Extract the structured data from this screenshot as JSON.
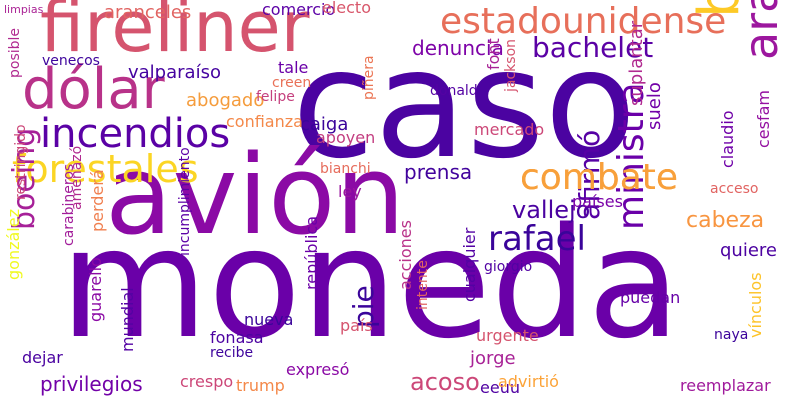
{
  "words": [
    {
      "text": "caso",
      "color": "#4b03a1"
    },
    {
      "text": "moneda",
      "color": "#6a00a8"
    },
    {
      "text": "avión",
      "color": "#8b0aa5"
    },
    {
      "text": "fireliner",
      "color": "#d5546e"
    },
    {
      "text": "dólar",
      "color": "#b83289"
    },
    {
      "text": "brics",
      "color": "#fdc926"
    },
    {
      "text": "estadounidense",
      "color": "#e76f5a"
    },
    {
      "text": "araneda",
      "color": "#9c179e"
    },
    {
      "text": "incendios",
      "color": "#5a01a5"
    },
    {
      "text": "forestales",
      "color": "#fbd524"
    },
    {
      "text": "combate",
      "color": "#f8a03b"
    },
    {
      "text": "rafael",
      "color": "#3a049a"
    },
    {
      "text": "ministra",
      "color": "#6a00a8"
    },
    {
      "text": "bachelet",
      "color": "#5b01a5"
    },
    {
      "text": "boeing",
      "color": "#a62098"
    },
    {
      "text": "vallejo",
      "color": "#4a02a0"
    },
    {
      "text": "cabeza",
      "color": "#f89540"
    },
    {
      "text": "denuncia",
      "color": "#7e03a8"
    },
    {
      "text": "afirmó",
      "color": "#5601a4"
    },
    {
      "text": "valparaíso",
      "color": "#4503a0"
    },
    {
      "text": "abogado",
      "color": "#f59c3c"
    },
    {
      "text": "acoso",
      "color": "#cc4778"
    },
    {
      "text": "privilegios",
      "color": "#7201a8"
    },
    {
      "text": "pie",
      "color": "#3b049a"
    },
    {
      "text": "prensa",
      "color": "#42039d"
    },
    {
      "text": "combate",
      "color": "#f8a03b"
    },
    {
      "text": "aranceles",
      "color": "#e16462"
    },
    {
      "text": "comercio",
      "color": "#5c01a6"
    },
    {
      "text": "electo",
      "color": "#d8576b"
    },
    {
      "text": "suelo",
      "color": "#7201a8"
    },
    {
      "text": "cesfam",
      "color": "#9511a1"
    },
    {
      "text": "claudio",
      "color": "#6f00a8"
    },
    {
      "text": "font",
      "color": "#a82296"
    },
    {
      "text": "jackson",
      "color": "#d5546e"
    },
    {
      "text": "suplantar",
      "color": "#b12a90"
    },
    {
      "text": "piñera",
      "color": "#eb7655"
    },
    {
      "text": "caiga",
      "color": "#3a049a"
    },
    {
      "text": "donald",
      "color": "#5402a3"
    },
    {
      "text": "mercado",
      "color": "#cc4778"
    },
    {
      "text": "confianza",
      "color": "#f48849"
    },
    {
      "text": "apoyen",
      "color": "#c33d80"
    },
    {
      "text": "creen",
      "color": "#e97158"
    },
    {
      "text": "felipe",
      "color": "#c5407e"
    },
    {
      "text": "tale",
      "color": "#6a00a8"
    },
    {
      "text": "ley",
      "color": "#9a169f"
    },
    {
      "text": "bianchi",
      "color": "#e66c5c"
    },
    {
      "text": "quiere",
      "color": "#4c02a1"
    },
    {
      "text": "países",
      "color": "#7a02a8"
    },
    {
      "text": "acceso",
      "color": "#e16462"
    },
    {
      "text": "vínculos",
      "color": "#fdc328"
    },
    {
      "text": "reemplazar",
      "color": "#a01a9c"
    },
    {
      "text": "eeuu",
      "color": "#5002a2"
    },
    {
      "text": "naya",
      "color": "#3c049b"
    },
    {
      "text": "jorge",
      "color": "#a82296"
    },
    {
      "text": "advirtió",
      "color": "#fca338"
    },
    {
      "text": "urgente",
      "color": "#d5546e"
    },
    {
      "text": "cualquier",
      "color": "#5302a3"
    },
    {
      "text": "giorgio",
      "color": "#5102a3"
    },
    {
      "text": "intente",
      "color": "#e16462"
    },
    {
      "text": "acciones",
      "color": "#b93289"
    },
    {
      "text": "puedan",
      "color": "#6600a7"
    },
    {
      "text": "expresó",
      "color": "#8a09a5"
    },
    {
      "text": "trump",
      "color": "#f48849"
    },
    {
      "text": "crespo",
      "color": "#cc4778"
    },
    {
      "text": "mundial",
      "color": "#5402a3"
    },
    {
      "text": "fonasa",
      "color": "#4c02a1"
    },
    {
      "text": "recibe",
      "color": "#3e049c"
    },
    {
      "text": "nueva",
      "color": "#3b049a"
    },
    {
      "text": "república",
      "color": "#6a00a8"
    },
    {
      "text": "país",
      "color": "#d5546e"
    },
    {
      "text": "incumplimiento",
      "color": "#5c01a6"
    },
    {
      "text": "dejar",
      "color": "#4a02a0"
    },
    {
      "text": "guarello",
      "color": "#8b0aa5"
    },
    {
      "text": "perderá",
      "color": "#f07f4f"
    },
    {
      "text": "amenazó",
      "color": "#b12a90"
    },
    {
      "text": "carabineros",
      "color": "#a21d9a"
    },
    {
      "text": "gonzález",
      "color": "#f0f921"
    },
    {
      "text": "restringido",
      "color": "#cc4778"
    },
    {
      "text": "posible",
      "color": "#b12a90"
    },
    {
      "text": "venecos",
      "color": "#3e049c"
    },
    {
      "text": "limpias",
      "color": "#aa2395"
    }
  ]
}
